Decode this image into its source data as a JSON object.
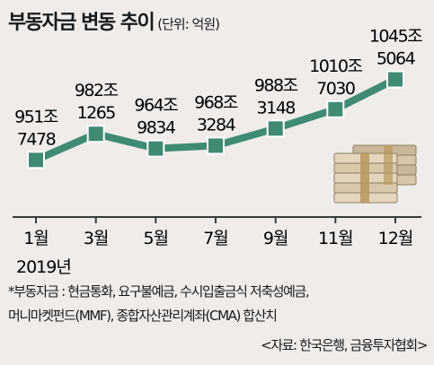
{
  "chart_data": {
    "type": "line",
    "title": "부동자금 변동 추이",
    "unit": "(단위: 억원)",
    "categories": [
      "1월",
      "3월",
      "5월",
      "7월",
      "9월",
      "11월",
      "12월"
    ],
    "year_label": "2019년",
    "series": [
      {
        "values": [
          9517478,
          9821265,
          9649834,
          9683284,
          9883148,
          10107030,
          10455064
        ],
        "labels": [
          [
            "951조",
            "7478"
          ],
          [
            "982조",
            "1265"
          ],
          [
            "964조",
            "9834"
          ],
          [
            "968조",
            "3284"
          ],
          [
            "988조",
            "3148"
          ],
          [
            "1010조",
            "7030"
          ],
          [
            "1045조",
            "5064"
          ]
        ]
      }
    ],
    "grid": false,
    "legend": "none"
  },
  "footnote": {
    "line1": "*부동자금 : 현금통화, 요구불예금, 수시입출금식 저축성예금,",
    "line2": "머니마켓펀드(MMF), 종합자산관리계좌(CMA) 합산치"
  },
  "source": "<자료: 한국은행, 금융투자협회>",
  "colors": {
    "line": "#3f8b72",
    "marker_fill": "#3f8b72",
    "marker_stroke": "#ffffff",
    "background": "#efecea",
    "axis": "#3a3a3a"
  },
  "illustration": "money-stack-icon"
}
